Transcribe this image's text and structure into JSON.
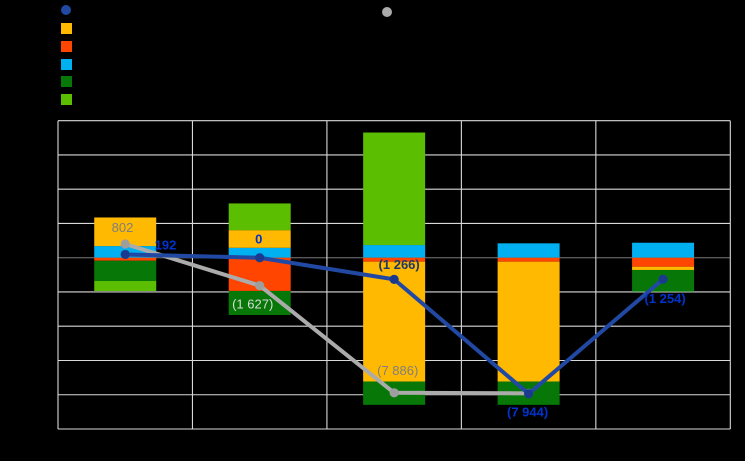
{
  "canvas": {
    "background": "#000000"
  },
  "legend": {
    "items": [
      {
        "id": "blue-line",
        "shape": "circle",
        "color": "#2149A3",
        "label": ""
      },
      {
        "id": "orange",
        "shape": "square",
        "color": "#FFB900",
        "label": ""
      },
      {
        "id": "orange-red",
        "shape": "square",
        "color": "#FF4500",
        "label": ""
      },
      {
        "id": "sky-blue",
        "shape": "square",
        "color": "#00B0F0",
        "label": ""
      },
      {
        "id": "dark-green",
        "shape": "square",
        "color": "#077807",
        "label": ""
      },
      {
        "id": "light-green",
        "shape": "square",
        "color": "#5CBE00",
        "label": ""
      },
      {
        "id": "gray-line",
        "shape": "circle",
        "color": "#ABABAB",
        "label": ""
      }
    ]
  },
  "chart_data": {
    "type": "stacked-bar+line",
    "title": "",
    "categories": [
      "",
      "",
      "",
      "",
      ""
    ],
    "grid": true,
    "legend_position": "top-left",
    "y_axis": {
      "min": -10000,
      "max": 8000,
      "step": 2000,
      "tick_labels_visible": false,
      "gridline_color": "#D9D9D9",
      "zero_line_color": "#595959"
    },
    "x_axis": {
      "tick_labels_visible": false
    },
    "bar_series": [
      {
        "id": "sky-blue",
        "color": "#00B0F0",
        "values": [
          680,
          580,
          740,
          840,
          875
        ]
      },
      {
        "id": "orange-red",
        "color": "#FF4500",
        "values": [
          -175,
          -1940,
          -230,
          -230,
          -525
        ]
      },
      {
        "id": "orange",
        "color": "#FFB900",
        "values": [
          1670,
          1030,
          -7000,
          -7000,
          -190
        ]
      },
      {
        "id": "dark-green",
        "color": "#077807",
        "values": [
          -1185,
          -1405,
          -1360,
          -1360,
          -1265
        ]
      },
      {
        "id": "light-green",
        "color": "#5CBE00",
        "values": [
          -585,
          1560,
          6570,
          0,
          0
        ]
      }
    ],
    "line_series": [
      {
        "id": "gray-line",
        "color": "#ABABAB",
        "marker_color": "#9E9E9E",
        "values": [
          802,
          -1627,
          -7886,
          -7920
        ],
        "labels": [
          "802",
          "(1 627)",
          "(7 886)",
          ""
        ],
        "label_colors": [
          "#7F7F7F",
          "#D9D9D9",
          "#7F7F7F",
          ""
        ],
        "labels_bold": false
      },
      {
        "id": "blue-line",
        "color": "#2149A3",
        "marker_color": "#1A3A8F",
        "values": [
          192,
          0,
          -1266,
          -7944,
          -1254
        ],
        "labels": [
          "192",
          "0",
          "(1 266)",
          "(7 944)",
          "(1 254)"
        ],
        "label_colors": [
          "#0033CC",
          "#0033CC",
          "#1F3864",
          "#0033CC",
          "#0033CC"
        ],
        "labels_bold": true
      }
    ]
  }
}
